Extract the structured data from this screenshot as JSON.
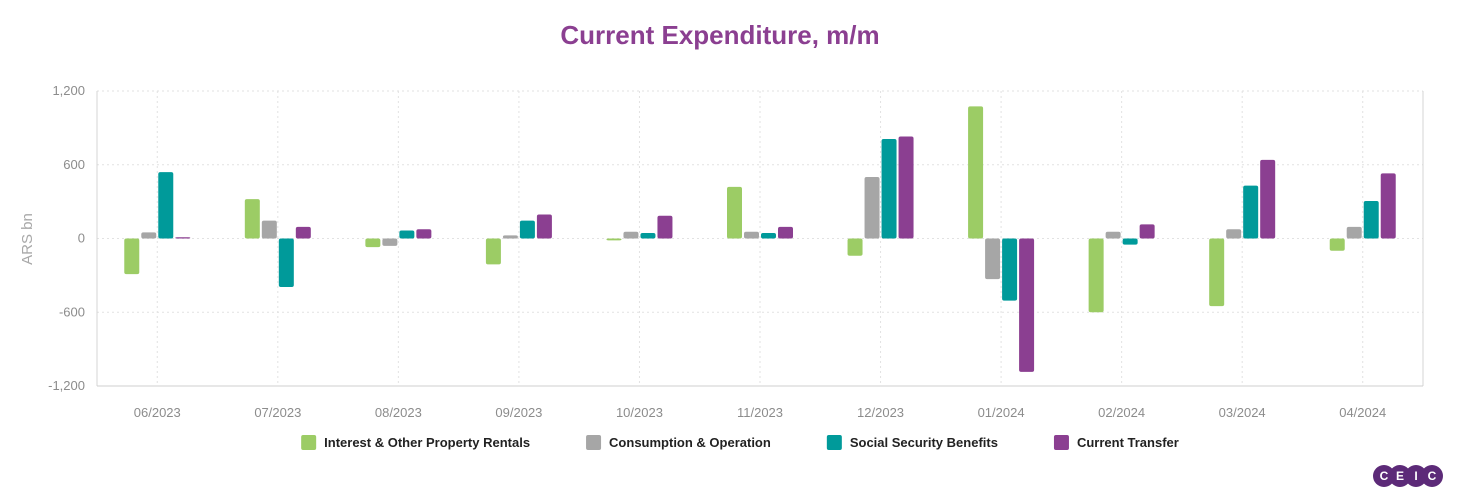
{
  "chart_data": {
    "type": "bar",
    "title": "Current Expenditure, m/m",
    "ylabel": "ARS bn",
    "ylim": [
      -1200,
      1200
    ],
    "yticks": [
      -1200,
      -600,
      0,
      600,
      1200
    ],
    "ytick_labels": [
      "-1,200",
      "-600",
      "0",
      "600",
      "1,200"
    ],
    "grid": true,
    "legend_position": "bottom",
    "categories": [
      "06/2023",
      "07/2023",
      "08/2023",
      "09/2023",
      "10/2023",
      "11/2023",
      "12/2023",
      "01/2024",
      "02/2024",
      "03/2024",
      "04/2024"
    ],
    "series": [
      {
        "name": "Interest & Other Property Rentals",
        "color": "#9ccc65",
        "values": [
          -290,
          320,
          -70,
          -210,
          -15,
          420,
          -140,
          1075,
          -600,
          -550,
          -100
        ]
      },
      {
        "name": "Consumption & Operation",
        "color": "#a6a6a6",
        "values": [
          50,
          145,
          -60,
          25,
          55,
          55,
          500,
          -330,
          55,
          75,
          95
        ]
      },
      {
        "name": "Social Security Benefits",
        "color": "#009a9a",
        "values": [
          540,
          -395,
          65,
          145,
          45,
          45,
          810,
          -505,
          -50,
          430,
          305
        ]
      },
      {
        "name": "Current Transfer",
        "color": "#8b3f91",
        "values": [
          10,
          95,
          75,
          195,
          185,
          95,
          830,
          -1085,
          115,
          640,
          530
        ]
      }
    ]
  },
  "logo": {
    "text": [
      "C",
      "E",
      "I",
      "C"
    ],
    "color": "#5c2a78"
  }
}
